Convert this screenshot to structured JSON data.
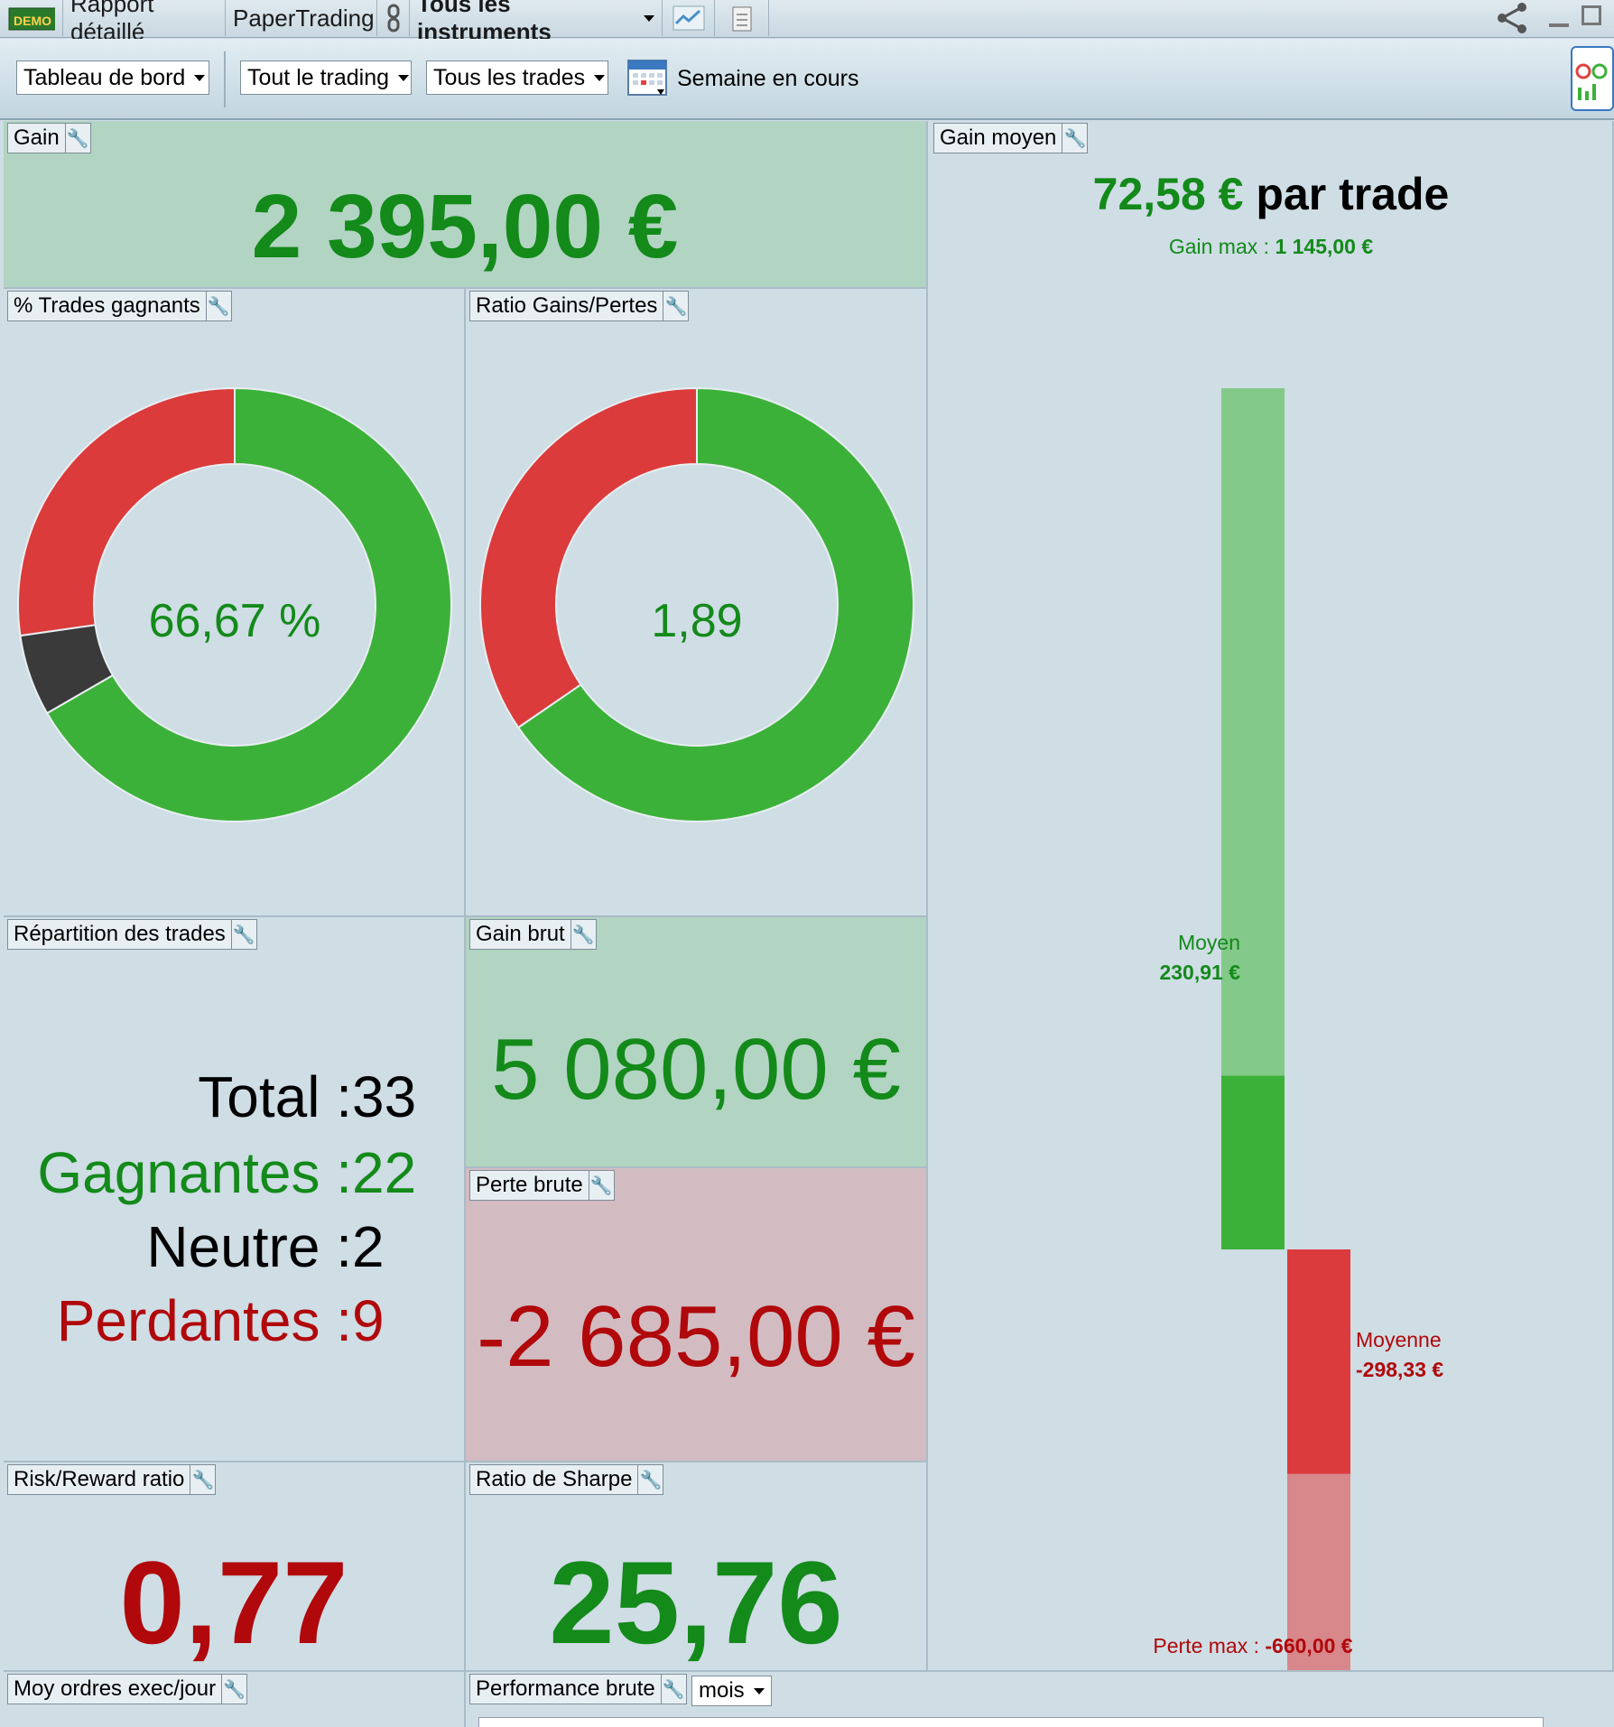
{
  "titlebar": {
    "demo_badge": "DEMO",
    "tab_report": "Rapport détaillé",
    "tab_account": "PaperTrading",
    "instrument_selector": "Tous les instruments"
  },
  "toolbar": {
    "dashboard_dropdown": "Tableau de bord",
    "trading_dropdown": "Tout le trading",
    "trades_dropdown": "Tous les trades",
    "period_label": "Semaine en cours"
  },
  "gain": {
    "title": "Gain",
    "value": "2 395,00 €"
  },
  "win_pct": {
    "title": "% Trades gagnants",
    "center": "66,67 %"
  },
  "ratio_gl": {
    "title": "Ratio Gains/Pertes",
    "center": "1,89"
  },
  "avg_gain": {
    "title": "Gain moyen",
    "value": "72,58 €",
    "suffix": "par trade",
    "max_label": "Gain max :",
    "max_value": "1 145,00 €",
    "avg_win_label": "Moyen",
    "avg_win_value": "230,91 €",
    "avg_loss_label": "Moyenne",
    "avg_loss_value": "-298,33 €",
    "min_label": "Perte max :",
    "min_value": "-660,00 €"
  },
  "distribution": {
    "title": "Répartition des trades",
    "rows": [
      {
        "label": "Total :",
        "value": "33"
      },
      {
        "label": "Gagnantes :",
        "value": "22"
      },
      {
        "label": "Neutre :",
        "value": "2"
      },
      {
        "label": "Perdantes :",
        "value": "9"
      }
    ]
  },
  "gross_gain": {
    "title": "Gain brut",
    "value": "5 080,00 €"
  },
  "gross_loss": {
    "title": "Perte brute",
    "value": "-2 685,00 €"
  },
  "risk_reward": {
    "title": "Risk/Reward ratio",
    "value": "0,77"
  },
  "sharpe": {
    "title": "Ratio de Sharpe",
    "value": "25,76"
  },
  "avg_orders": {
    "title": "Moy ordres exec/jour"
  },
  "gross_perf": {
    "title": "Performance brute",
    "period": "mois"
  },
  "chart_data": [
    {
      "type": "pie",
      "title": "% Trades gagnants",
      "categories": [
        "Gagnantes",
        "Neutre",
        "Perdantes"
      ],
      "values": [
        22,
        2,
        9
      ],
      "colors": [
        "#3cb139",
        "#3a3a3a",
        "#dc3b3b"
      ]
    },
    {
      "type": "pie",
      "title": "Ratio Gains/Pertes",
      "categories": [
        "Gain brut",
        "Perte brute"
      ],
      "values": [
        5080,
        2685
      ],
      "colors": [
        "#3cb139",
        "#dc3b3b"
      ]
    },
    {
      "type": "bar",
      "title": "Gain moyen",
      "categories": [
        "Gain max",
        "Moyen",
        "Moyenne",
        "Perte max"
      ],
      "values": [
        1145,
        230.91,
        -298.33,
        -660
      ]
    }
  ]
}
